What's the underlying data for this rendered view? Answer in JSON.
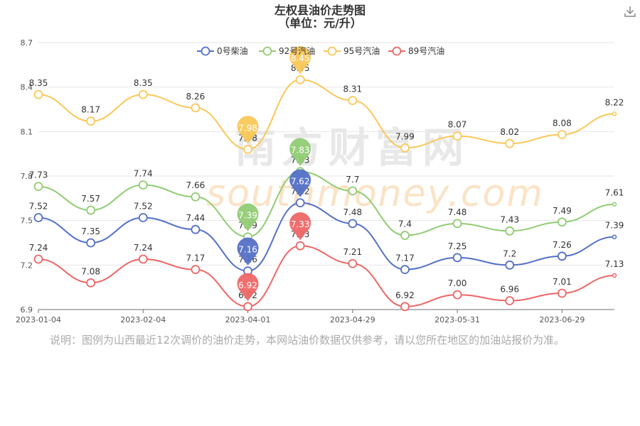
{
  "toolbar": {
    "download_icon": "download-icon"
  },
  "note": "说明：图例为山西最近12次调价的油价走势，本网站油价数据仅供参考，请以您所在地区的加油站报价为准。",
  "watermark": {
    "cn": "南方财富网",
    "en": "southmoney.com"
  },
  "chart_data": {
    "type": "line",
    "title": "左权县油价走势图",
    "subtitle": "（单位：元/升）",
    "ylim": [
      6.9,
      8.7
    ],
    "yticks": [
      6.9,
      7.2,
      7.5,
      7.8,
      8.1,
      8.4,
      8.7
    ],
    "ytick_labels": [
      "6.9",
      "7.2",
      "7.5",
      "7.8",
      "8.1",
      "8.4",
      "8.7"
    ],
    "xtick_labels": [
      "2023-01-04",
      "2023-02-04",
      "2023-04-01",
      "2023-04-29",
      "2023-05-31",
      "2023-06-29"
    ],
    "xtick_positions": [
      0,
      2,
      4,
      6,
      8,
      10
    ],
    "grid": true,
    "legend_position": "top",
    "series": [
      {
        "name": "0号柴油",
        "color": "#5470c6",
        "values": [
          7.52,
          7.35,
          7.52,
          7.44,
          7.16,
          7.62,
          7.48,
          7.17,
          7.25,
          7.2,
          7.26,
          7.39
        ],
        "labels": [
          "7.52",
          "7.35",
          "7.52",
          "7.44",
          "7.16",
          "7.62",
          "7.48",
          "7.17",
          "7.25",
          "7.2",
          "7.26",
          "7.39"
        ],
        "pins": [
          4,
          5
        ]
      },
      {
        "name": "92号汽油",
        "color": "#91cc75",
        "values": [
          7.73,
          7.57,
          7.74,
          7.66,
          7.39,
          7.83,
          7.7,
          7.4,
          7.48,
          7.43,
          7.49,
          7.61
        ],
        "labels": [
          "7.73",
          "7.57",
          "7.74",
          "7.66",
          "7.39",
          "7.83",
          "7.7",
          "7.4",
          "7.48",
          "7.43",
          "7.49",
          "7.61"
        ],
        "pins": [
          4,
          5
        ]
      },
      {
        "name": "95号汽油",
        "color": "#fac858",
        "values": [
          8.35,
          8.17,
          8.35,
          8.26,
          7.98,
          8.45,
          8.31,
          7.99,
          8.07,
          8.02,
          8.08,
          8.22
        ],
        "labels": [
          "8.35",
          "8.17",
          "8.35",
          "8.26",
          "7.98",
          "8.45",
          "8.31",
          "7.99",
          "8.07",
          "8.02",
          "8.08",
          "8.22"
        ],
        "pins": [
          4,
          5
        ]
      },
      {
        "name": "89号汽油",
        "color": "#ee6666",
        "values": [
          7.24,
          7.08,
          7.24,
          7.17,
          6.92,
          7.33,
          7.21,
          6.92,
          7.0,
          6.96,
          7.01,
          7.13
        ],
        "labels": [
          "7.24",
          "7.08",
          "7.24",
          "7.17",
          "6.92",
          "7.33",
          "7.21",
          "6.92",
          "7.00",
          "6.96",
          "7.01",
          "7.13"
        ],
        "pins": [
          4,
          5
        ]
      }
    ]
  }
}
